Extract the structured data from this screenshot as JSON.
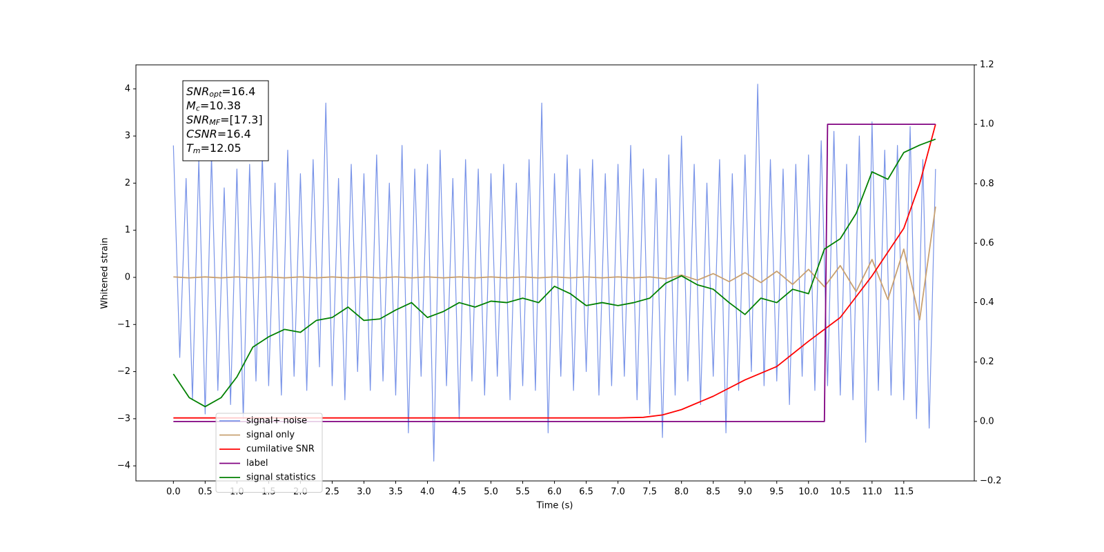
{
  "chart_data": {
    "type": "line",
    "xlabel": "Time (s)",
    "ylabel": "Whitened strain",
    "xlim": [
      -0.59,
      12.61
    ],
    "ylim": [
      -4.32,
      4.51
    ],
    "y2lim": [
      -0.2,
      1.2
    ],
    "xticks": [
      {
        "value": 0,
        "label": "0.0"
      },
      0.5,
      {
        "value": 1,
        "label": "1.0"
      },
      1.5,
      {
        "value": 2,
        "label": "2.0"
      },
      2.5,
      {
        "value": 3,
        "label": "3.0"
      },
      3.5,
      {
        "value": 4,
        "label": "4.0"
      },
      4.5,
      {
        "value": 5,
        "label": "5.0"
      },
      5.5,
      {
        "value": 6,
        "label": "6.0"
      },
      6.5,
      {
        "value": 7,
        "label": "7.0"
      },
      7.5,
      {
        "value": 8,
        "label": "8.0"
      },
      8.5,
      {
        "value": 9,
        "label": "9.0"
      },
      9.5,
      {
        "value": 10,
        "label": "10.0"
      },
      10.5,
      {
        "value": 11,
        "label": "11.0"
      },
      11.5
    ],
    "yticks": [
      {
        "value": -4,
        "label": "−4"
      },
      {
        "value": -3,
        "label": "−3"
      },
      {
        "value": -2,
        "label": "−2"
      },
      {
        "value": -1,
        "label": "−1"
      },
      0,
      1,
      2,
      3,
      4
    ],
    "y2ticks": [
      {
        "value": -0.2,
        "label": "−0.2"
      },
      {
        "value": 0,
        "label": "0.0"
      },
      0.2,
      0.4,
      0.6,
      0.8,
      {
        "value": 1,
        "label": "1.0"
      },
      1.2
    ],
    "legend": true,
    "annotations": [
      {
        "symbol": "SNR",
        "subscript": "opt",
        "text": "=16.4"
      },
      {
        "symbol": "M",
        "subscript": "c",
        "text": "=10.38"
      },
      {
        "symbol": "SNR",
        "subscript": "MF",
        "text": "=[17.3]"
      },
      {
        "symbol": "CSNR",
        "text": "=16.4"
      },
      {
        "symbol": "T",
        "subscript": "m",
        "text": "=12.05"
      }
    ],
    "series": [
      {
        "name": "signal+ noise",
        "color": "#7893e8",
        "axis": "y",
        "x": [
          0,
          0.1,
          0.2,
          0.3,
          0.4,
          0.5,
          0.6,
          0.7,
          0.8,
          0.9,
          1,
          1.1,
          1.2,
          1.3,
          1.4,
          1.5,
          1.6,
          1.7,
          1.8,
          1.9,
          2,
          2.1,
          2.2,
          2.3,
          2.4,
          2.5,
          2.6,
          2.7,
          2.8,
          2.9,
          3,
          3.1,
          3.2,
          3.3,
          3.4,
          3.5,
          3.6,
          3.7,
          3.8,
          3.9,
          4,
          4.1,
          4.2,
          4.3,
          4.4,
          4.5,
          4.6,
          4.7,
          4.8,
          4.9,
          5,
          5.1,
          5.2,
          5.3,
          5.4,
          5.5,
          5.6,
          5.7,
          5.8,
          5.9,
          6,
          6.1,
          6.2,
          6.3,
          6.4,
          6.5,
          6.6,
          6.7,
          6.8,
          6.9,
          7,
          7.1,
          7.2,
          7.3,
          7.4,
          7.5,
          7.6,
          7.7,
          7.8,
          7.9,
          8,
          8.1,
          8.2,
          8.3,
          8.4,
          8.5,
          8.6,
          8.7,
          8.8,
          8.9,
          9,
          9.1,
          9.2,
          9.3,
          9.4,
          9.5,
          9.6,
          9.7,
          9.8,
          9.9,
          10,
          10.1,
          10.2,
          10.3,
          10.4,
          10.5,
          10.6,
          10.7,
          10.8,
          10.9,
          11,
          11.1,
          11.2,
          11.3,
          11.4,
          11.5,
          11.6,
          11.7,
          11.8,
          11.9,
          12
        ],
        "values": [
          2.8,
          -1.7,
          2.1,
          -2.6,
          2.5,
          -2.9,
          2.6,
          -2.4,
          1.9,
          -2.7,
          2.3,
          -3.0,
          2.4,
          -2.2,
          2.6,
          -2.3,
          2.0,
          -2.5,
          2.7,
          -2.1,
          2.2,
          -2.4,
          2.5,
          -1.9,
          3.7,
          -2.3,
          2.1,
          -2.6,
          2.4,
          -2.0,
          2.2,
          -2.4,
          2.6,
          -2.2,
          2.0,
          -2.5,
          2.8,
          -3.3,
          2.3,
          -2.1,
          2.4,
          -3.9,
          2.7,
          -2.3,
          2.1,
          -3.0,
          2.5,
          -2.2,
          2.3,
          -2.5,
          2.2,
          -2.1,
          2.4,
          -2.6,
          2.0,
          -2.3,
          2.5,
          -2.4,
          3.7,
          -3.3,
          2.2,
          -2.1,
          2.6,
          -2.4,
          2.3,
          -2.0,
          2.5,
          -2.5,
          2.2,
          -2.3,
          2.4,
          -2.1,
          2.8,
          -2.6,
          2.3,
          -2.9,
          2.1,
          -3.4,
          2.6,
          -2.5,
          3.0,
          -2.2,
          2.4,
          -2.7,
          2.0,
          -2.1,
          2.5,
          -3.3,
          2.2,
          -2.4,
          2.6,
          -2.0,
          4.1,
          -2.3,
          2.5,
          -2.2,
          2.3,
          -2.7,
          2.4,
          -2.1,
          2.6,
          -2.4,
          2.9,
          -2.3,
          3.1,
          -2.5,
          2.4,
          -2.6,
          3.0,
          -3.5,
          3.3,
          -2.4,
          2.7,
          -2.5,
          2.8,
          -2.6,
          3.2,
          -3.0,
          2.5,
          -3.2,
          2.3
        ]
      },
      {
        "name": "signal only",
        "color": "#c8a070",
        "axis": "y",
        "x": [
          0,
          0.25,
          0.5,
          0.75,
          1,
          1.25,
          1.5,
          1.75,
          2,
          2.25,
          2.5,
          2.75,
          3,
          3.25,
          3.5,
          3.75,
          4,
          4.25,
          4.5,
          4.75,
          5,
          5.25,
          5.5,
          5.75,
          6,
          6.25,
          6.5,
          6.75,
          7,
          7.25,
          7.5,
          7.75,
          8,
          8.25,
          8.5,
          8.75,
          9,
          9.25,
          9.5,
          9.75,
          10,
          10.25,
          10.5,
          10.75,
          11,
          11.25,
          11.5,
          11.75,
          12
        ],
        "values": [
          0.01,
          -0.01,
          0.01,
          -0.01,
          0.01,
          -0.01,
          0.01,
          -0.01,
          0.01,
          -0.01,
          0.01,
          -0.01,
          0.01,
          -0.01,
          0.01,
          -0.01,
          0.01,
          -0.01,
          0.01,
          -0.01,
          0.01,
          -0.01,
          0.01,
          -0.01,
          0.01,
          -0.01,
          0.01,
          -0.01,
          0.01,
          -0.01,
          0.01,
          -0.03,
          0.05,
          -0.06,
          0.08,
          -0.09,
          0.1,
          -0.11,
          0.13,
          -0.15,
          0.17,
          -0.2,
          0.25,
          -0.3,
          0.38,
          -0.47,
          0.6,
          -0.9,
          1.5
        ]
      },
      {
        "name": "cumilative SNR",
        "color": "#ff0000",
        "axis": "y2",
        "x": [
          0,
          7.0,
          7.4,
          7.7,
          8.0,
          8.5,
          9.0,
          9.5,
          10.0,
          10.5,
          11.0,
          11.5,
          11.75,
          12.0
        ],
        "values": [
          0.012,
          0.012,
          0.014,
          0.022,
          0.04,
          0.085,
          0.14,
          0.185,
          0.27,
          0.35,
          0.49,
          0.65,
          0.8,
          1.0
        ]
      },
      {
        "name": "label",
        "color": "#800080",
        "axis": "y2",
        "x": [
          0,
          10.25,
          10.3,
          12.0
        ],
        "values": [
          0,
          0,
          1,
          1
        ]
      },
      {
        "name": "signal statistics",
        "color": "#008000",
        "axis": "y2",
        "x": [
          0,
          0.25,
          0.5,
          0.75,
          1,
          1.25,
          1.5,
          1.75,
          2,
          2.25,
          2.5,
          2.75,
          3,
          3.25,
          3.5,
          3.75,
          4,
          4.25,
          4.5,
          4.75,
          5,
          5.25,
          5.5,
          5.75,
          6,
          6.25,
          6.5,
          6.75,
          7,
          7.25,
          7.5,
          7.75,
          8,
          8.25,
          8.5,
          8.75,
          9,
          9.25,
          9.5,
          9.75,
          10,
          10.25,
          10.5,
          10.75,
          11,
          11.25,
          11.5,
          11.75,
          12
        ],
        "values": [
          0.16,
          0.08,
          0.05,
          0.08,
          0.15,
          0.25,
          0.285,
          0.31,
          0.3,
          0.34,
          0.35,
          0.385,
          0.34,
          0.345,
          0.375,
          0.4,
          0.35,
          0.37,
          0.4,
          0.385,
          0.405,
          0.4,
          0.415,
          0.4,
          0.455,
          0.43,
          0.39,
          0.4,
          0.39,
          0.4,
          0.415,
          0.465,
          0.49,
          0.46,
          0.445,
          0.4,
          0.36,
          0.415,
          0.4,
          0.445,
          0.43,
          0.58,
          0.615,
          0.7,
          0.84,
          0.815,
          0.905,
          0.93,
          0.95
        ]
      }
    ]
  }
}
